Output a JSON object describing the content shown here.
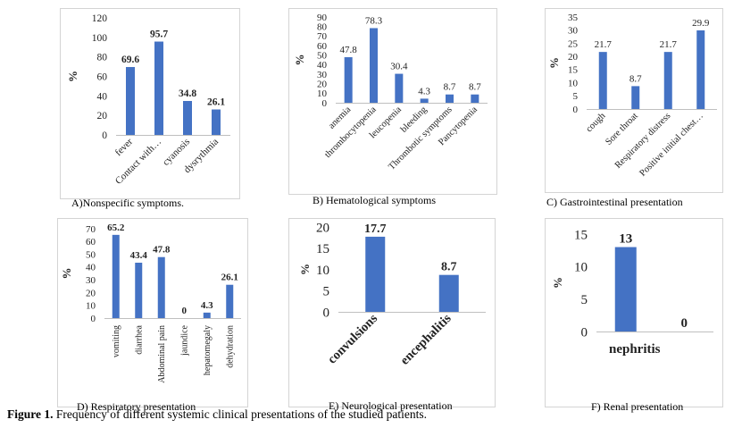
{
  "figure_caption": {
    "label": "Figure 1.",
    "text": " Frequency of different systemic clinical presentations of the studied patients."
  },
  "colors": {
    "bar": "#4472C4",
    "axis": "#bfbfbf",
    "text": "#222222"
  },
  "chart_data": [
    {
      "id": "A",
      "type": "bar",
      "caption": "A)Nonspecific symptoms.",
      "ylabel": "%",
      "ylim": [
        0,
        120
      ],
      "yticks": [
        "0",
        "20",
        "40",
        "60",
        "80",
        "100",
        "120"
      ],
      "categories": [
        "fever",
        "Contact with…",
        "cyanosis",
        "dysrythmia"
      ],
      "values": [
        69.6,
        95.7,
        34.8,
        26.1
      ],
      "labels": [
        "69.6",
        "95.7",
        "34.8",
        "26.1"
      ]
    },
    {
      "id": "B",
      "type": "bar",
      "caption": "B) Hematological symptoms",
      "ylabel": "%",
      "ylim": [
        0,
        90
      ],
      "yticks": [
        "0",
        "10",
        "20",
        "30",
        "40",
        "50",
        "60",
        "70",
        "80",
        "90"
      ],
      "categories": [
        "anemia",
        "thrombocytopenia",
        "leucopenia",
        "bleeding",
        "Thrombotic symptoms",
        "Pancytopenia"
      ],
      "values": [
        47.8,
        78.3,
        30.4,
        4.3,
        8.7,
        8.7
      ],
      "labels": [
        "47.8",
        "78.3",
        "30.4",
        "4.3",
        "8.7",
        "8.7"
      ]
    },
    {
      "id": "C",
      "type": "bar",
      "caption": "C) Gastrointestinal presentation",
      "ylabel": "%",
      "ylim": [
        0,
        35
      ],
      "yticks": [
        "0",
        "5",
        "10",
        "15",
        "20",
        "25",
        "30",
        "35"
      ],
      "categories": [
        "cough",
        "Sore throat",
        "Respiratory distress",
        "Positive initial chest…"
      ],
      "values": [
        21.7,
        8.7,
        21.7,
        29.9
      ],
      "labels": [
        "21.7",
        "8.7",
        "21.7",
        "29.9"
      ]
    },
    {
      "id": "D",
      "type": "bar",
      "caption": "D) Respiratory presentation",
      "ylabel": "%",
      "ylim": [
        0,
        70
      ],
      "yticks": [
        "0",
        "10",
        "20",
        "30",
        "40",
        "50",
        "60",
        "70"
      ],
      "categories": [
        "vomiting",
        "diarrhea",
        "Abdominal pain",
        "jaundice",
        "hepatomegaly",
        "dehydration"
      ],
      "values": [
        65.2,
        43.4,
        47.8,
        0,
        4.3,
        26.1
      ],
      "labels": [
        "65.2",
        "43.4",
        "47.8",
        "0",
        "4.3",
        "26.1"
      ]
    },
    {
      "id": "E",
      "type": "bar",
      "caption": "E) Neurological presentation",
      "ylabel": "%",
      "ylim": [
        0,
        20
      ],
      "yticks": [
        "0",
        "5",
        "10",
        "15",
        "20"
      ],
      "categories": [
        "convulsions",
        "encephalitis"
      ],
      "values": [
        17.7,
        8.7
      ],
      "labels": [
        "17.7",
        "8.7"
      ]
    },
    {
      "id": "F",
      "type": "bar",
      "caption": "F) Renal presentation",
      "ylabel": "%",
      "ylim": [
        0,
        15
      ],
      "yticks": [
        "0",
        "5",
        "10",
        "15"
      ],
      "categories": [
        "nephritis",
        ""
      ],
      "values": [
        13,
        0
      ],
      "labels": [
        "13",
        "0"
      ]
    }
  ]
}
